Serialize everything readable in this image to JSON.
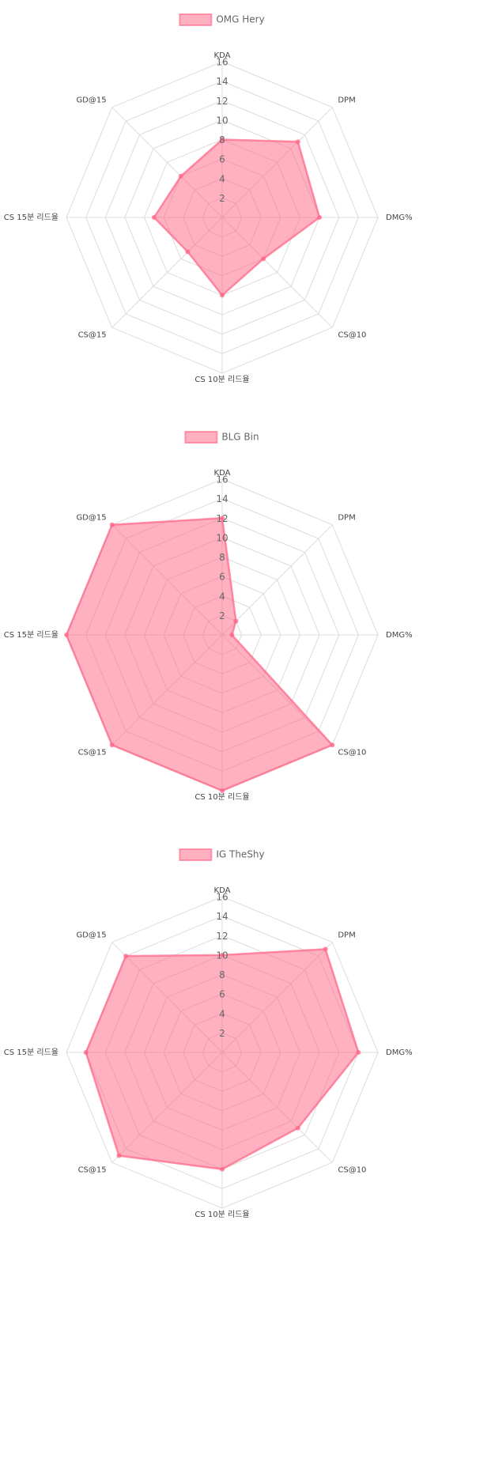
{
  "chart_data": [
    {
      "type": "radar",
      "categories": [
        "KDA",
        "DPM",
        "DMG%",
        "CS@10",
        "CS 10분 리드율",
        "CS@15",
        "CS 15분 리드율",
        "GD@15"
      ],
      "series": [
        {
          "name": "OMG Hery",
          "color": "#ff6384",
          "values": [
            8,
            11,
            10,
            6,
            8,
            5,
            7,
            6
          ]
        }
      ],
      "rlim": [
        0,
        16
      ],
      "rticks": [
        2,
        4,
        6,
        8,
        10,
        12,
        14,
        16
      ],
      "grid": true
    },
    {
      "type": "radar",
      "categories": [
        "KDA",
        "DPM",
        "DMG%",
        "CS@10",
        "CS 10분 리드율",
        "CS@15",
        "CS 15분 리드율",
        "GD@15"
      ],
      "series": [
        {
          "name": "BLG Bin",
          "color": "#ff6384",
          "values": [
            12,
            2,
            1,
            16,
            16,
            16,
            16,
            16
          ]
        }
      ],
      "rlim": [
        0,
        16
      ],
      "rticks": [
        2,
        4,
        6,
        8,
        10,
        12,
        14,
        16
      ],
      "grid": true
    },
    {
      "type": "radar",
      "categories": [
        "KDA",
        "DPM",
        "DMG%",
        "CS@10",
        "CS 10분 리드율",
        "CS@15",
        "CS 15분 리드율",
        "GD@15"
      ],
      "series": [
        {
          "name": "IG TheShy",
          "color": "#ff6384",
          "values": [
            10,
            15,
            14,
            11,
            12,
            15,
            14,
            14
          ]
        }
      ],
      "rlim": [
        0,
        16
      ],
      "rticks": [
        2,
        4,
        6,
        8,
        10,
        12,
        14,
        16
      ],
      "grid": true
    }
  ]
}
